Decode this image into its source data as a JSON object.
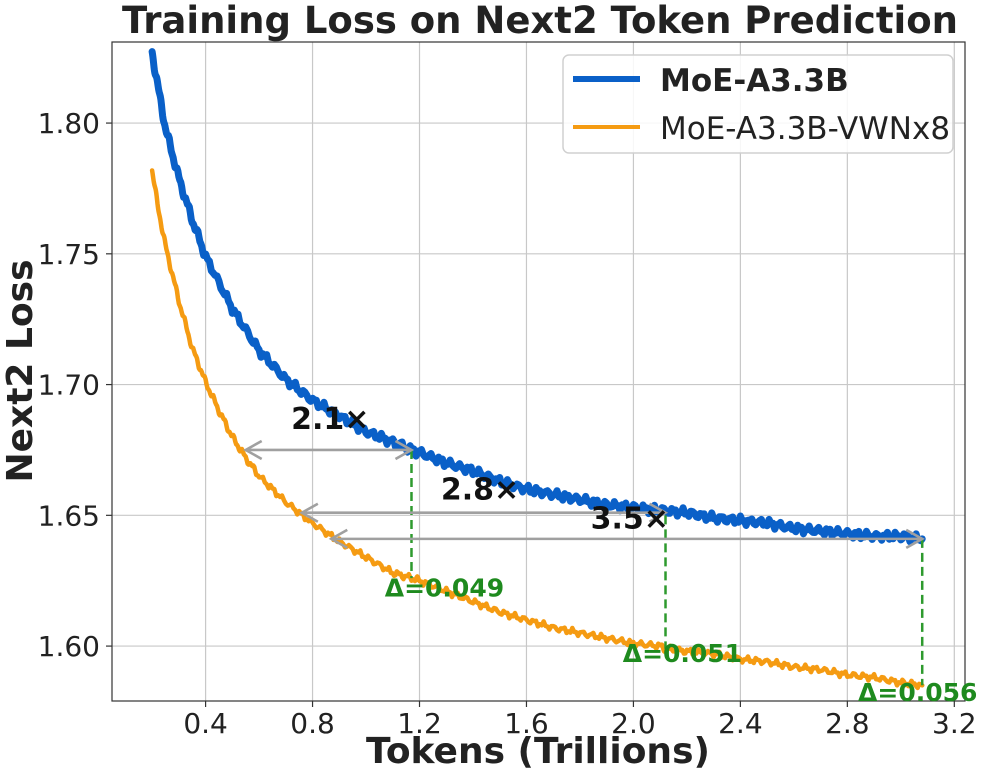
{
  "chart_data": {
    "type": "line",
    "title": "Training Loss on Next2 Token Prediction",
    "xlabel": "Tokens (Trillions)",
    "ylabel": "Next2 Loss",
    "xlim": [
      0.05,
      3.24
    ],
    "ylim": [
      1.579,
      1.831
    ],
    "xticks": [
      0.4,
      0.8,
      1.2,
      1.6,
      2.0,
      2.4,
      2.8,
      3.2
    ],
    "xtick_labels": [
      "0.4",
      "0.8",
      "1.2",
      "1.6",
      "2.0",
      "2.4",
      "2.8",
      "3.2"
    ],
    "yticks": [
      1.6,
      1.65,
      1.7,
      1.75,
      1.8
    ],
    "ytick_labels": [
      "1.60",
      "1.65",
      "1.70",
      "1.75",
      "1.80"
    ],
    "grid": true,
    "legend_position": "top-right",
    "series": [
      {
        "name": "MoE-A3.3B",
        "color": "#0a60c8",
        "bold_label": true,
        "x": [
          0.2,
          0.22,
          0.25,
          0.3,
          0.35,
          0.4,
          0.5,
          0.6,
          0.7,
          0.8,
          0.9,
          1.0,
          1.1,
          1.17,
          1.2,
          1.3,
          1.4,
          1.5,
          1.6,
          1.7,
          1.8,
          1.9,
          2.0,
          2.1,
          2.2,
          2.3,
          2.4,
          2.5,
          2.6,
          2.7,
          2.8,
          2.9,
          3.0,
          3.08
        ],
        "y": [
          1.827,
          1.815,
          1.798,
          1.779,
          1.763,
          1.749,
          1.729,
          1.713,
          1.702,
          1.694,
          1.688,
          1.682,
          1.678,
          1.675,
          1.674,
          1.67,
          1.667,
          1.663,
          1.66,
          1.658,
          1.656,
          1.654,
          1.653,
          1.652,
          1.651,
          1.649,
          1.648,
          1.647,
          1.645,
          1.644,
          1.643,
          1.642,
          1.642,
          1.641
        ]
      },
      {
        "name": "MoE-A3.3B-VWNx8",
        "color": "#f59b12",
        "bold_label": false,
        "x": [
          0.2,
          0.22,
          0.25,
          0.3,
          0.35,
          0.4,
          0.45,
          0.5,
          0.55,
          0.6,
          0.7,
          0.8,
          0.9,
          1.0,
          1.1,
          1.17,
          1.2,
          1.3,
          1.4,
          1.5,
          1.6,
          1.7,
          1.8,
          1.9,
          2.0,
          2.1,
          2.12,
          2.2,
          2.3,
          2.4,
          2.5,
          2.6,
          2.7,
          2.8,
          2.9,
          3.0,
          3.08
        ],
        "y": [
          1.782,
          1.769,
          1.753,
          1.732,
          1.714,
          1.701,
          1.69,
          1.68,
          1.672,
          1.665,
          1.655,
          1.647,
          1.64,
          1.634,
          1.628,
          1.626,
          1.625,
          1.621,
          1.617,
          1.613,
          1.61,
          1.607,
          1.605,
          1.603,
          1.601,
          1.6,
          1.599,
          1.598,
          1.597,
          1.595,
          1.594,
          1.592,
          1.591,
          1.589,
          1.588,
          1.586,
          1.585
        ]
      }
    ],
    "annotations": {
      "ratios": [
        {
          "label": "2.1×",
          "label_x": 0.72,
          "label_y": 1.683,
          "from_x": 1.17,
          "to_x": 0.55,
          "y": 1.675
        },
        {
          "label": "2.8×",
          "label_x": 1.28,
          "label_y": 1.656,
          "from_x": 2.12,
          "to_x": 0.76,
          "y": 1.651
        },
        {
          "label": "3.5×",
          "label_x": 1.84,
          "label_y": 1.645,
          "from_x": 3.08,
          "to_x": 0.87,
          "y": 1.641
        }
      ],
      "deltas": [
        {
          "label": "Δ=0.049",
          "x": 1.17,
          "y_top": 1.675,
          "y_bottom": 1.626,
          "label_x": 1.07,
          "label_y": 1.619
        },
        {
          "label": "Δ=0.051",
          "x": 2.12,
          "y_top": 1.65,
          "y_bottom": 1.599,
          "label_x": 1.96,
          "label_y": 1.594
        },
        {
          "label": "Δ=0.056",
          "x": 3.08,
          "y_top": 1.641,
          "y_bottom": 1.585,
          "label_x": 2.84,
          "label_y": 1.579
        }
      ],
      "arrow_color": "#a0a0a0",
      "delta_color": "#2e9a2e"
    }
  }
}
